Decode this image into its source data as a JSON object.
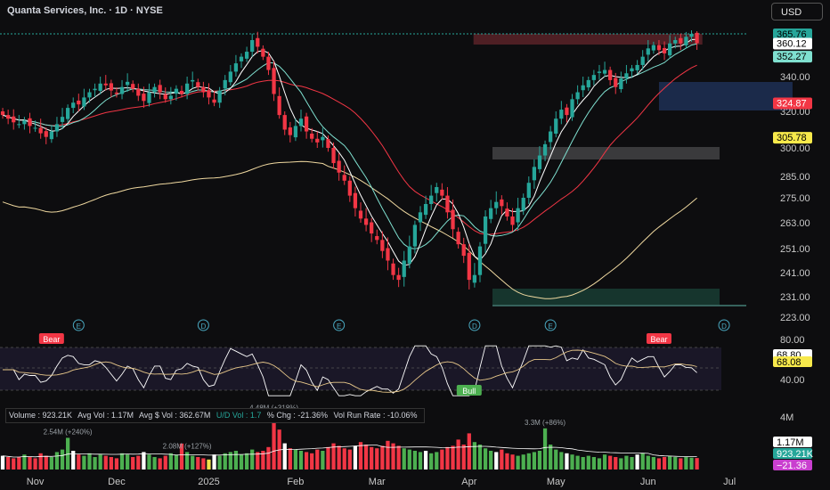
{
  "header": {
    "title": "Quanta Services, Inc. · 1D · NYSE",
    "currency": "USD"
  },
  "price_axis": {
    "ticks": [
      340,
      320,
      300,
      285,
      275,
      263,
      251,
      241,
      231,
      223
    ],
    "tick_labels": [
      "340.00",
      "320.00",
      "300.00",
      "285.00",
      "275.00",
      "263.00",
      "251.00",
      "241.00",
      "231.00",
      "223.00"
    ],
    "badges": [
      {
        "label": "365.76",
        "value": 365.76,
        "bg": "#26a69a",
        "fg": "#000000"
      },
      {
        "label": "360.12",
        "value": 360.12,
        "bg": "#ffffff",
        "fg": "#000000"
      },
      {
        "label": "352.27",
        "value": 352.27,
        "bg": "#7fe0d0",
        "fg": "#000000"
      },
      {
        "label": "324.87",
        "value": 324.87,
        "bg": "#f23645",
        "fg": "#ffffff"
      },
      {
        "label": "305.78",
        "value": 305.78,
        "bg": "#f7e94b",
        "fg": "#000000"
      }
    ]
  },
  "rsi_axis": {
    "labels": [
      "80.00",
      "40.00"
    ],
    "badges": [
      {
        "label": "68.80",
        "value": 68.8,
        "bg": "#ffffff",
        "fg": "#000000"
      },
      {
        "label": "68.08",
        "value": 68.08,
        "bg": "#f7e94b",
        "fg": "#000000"
      }
    ]
  },
  "vol_axis": {
    "labels": [
      "4M"
    ],
    "badges": [
      {
        "label": "1.17M",
        "value": 1.17,
        "bg": "#ffffff",
        "fg": "#000000"
      },
      {
        "label": "923.21K",
        "value": 0.923,
        "bg": "#26a69a",
        "fg": "#ffffff"
      },
      {
        "label": "−21.36",
        "value": -21.36,
        "bg": "#c93fcf",
        "fg": "#ffffff"
      }
    ]
  },
  "events": [
    {
      "letter": "E",
      "date_index": 14
    },
    {
      "letter": "D",
      "date_index": 37
    },
    {
      "letter": "E",
      "date_index": 62
    },
    {
      "letter": "D",
      "date_index": 87
    },
    {
      "letter": "E",
      "date_index": 101
    },
    {
      "letter": "D",
      "date_index": 133
    }
  ],
  "rsi_tags": [
    {
      "text": "Bear",
      "bg": "#f23645",
      "date_index": 9
    },
    {
      "text": "Bull",
      "bg": "#4caf50",
      "date_index": 86
    },
    {
      "text": "Bear",
      "bg": "#f23645",
      "date_index": 121
    }
  ],
  "volume_info": {
    "volume": "Volume : 923.21K",
    "avg_vol": "Avg Vol : 1.17M",
    "avg_dollar": "Avg $ Vol : 362.67M",
    "ud_vol": "U/D Vol : 1.7",
    "pct_chg": "% Chg : -21.36%",
    "run_rate": "Vol Run Rate : -10.06%"
  },
  "volume_annotations": [
    {
      "text": "2.54M (+240%)",
      "date_index": 12
    },
    {
      "text": "2.08M (+127%)",
      "date_index": 34
    },
    {
      "text": "4.48M (+318%)",
      "date_index": 50
    },
    {
      "text": "3.3M (+86%)",
      "date_index": 100
    }
  ],
  "x_axis": [
    {
      "label": "Nov",
      "date_index": 6
    },
    {
      "label": "Dec",
      "date_index": 21
    },
    {
      "label": "2025",
      "date_index": 38
    },
    {
      "label": "Feb",
      "date_index": 54
    },
    {
      "label": "Mar",
      "date_index": 69
    },
    {
      "label": "Apr",
      "date_index": 86
    },
    {
      "label": "May",
      "date_index": 102
    },
    {
      "label": "Jun",
      "date_index": 119
    },
    {
      "label": "Jul",
      "date_index": 134
    }
  ],
  "chart_data": {
    "type": "candlestick",
    "title": "Quanta Services, Inc. · 1D · NYSE",
    "ylim": [
      220,
      370
    ],
    "closes": [
      318,
      316,
      314,
      313,
      315,
      312,
      311,
      308,
      306,
      309,
      313,
      317,
      322,
      325,
      324,
      328,
      331,
      333,
      336,
      335,
      332,
      330,
      334,
      337,
      333,
      329,
      326,
      331,
      334,
      331,
      327,
      329,
      333,
      330,
      336,
      338,
      334,
      331,
      328,
      325,
      332,
      338,
      343,
      348,
      352,
      355,
      362,
      358,
      352,
      344,
      330,
      318,
      310,
      307,
      312,
      316,
      309,
      305,
      303,
      306,
      300,
      292,
      287,
      283,
      276,
      270,
      265,
      262,
      258,
      255,
      250,
      246,
      240,
      238,
      246,
      252,
      262,
      268,
      272,
      276,
      280,
      276,
      268,
      260,
      253,
      248,
      238,
      240,
      252,
      266,
      270,
      273,
      271,
      266,
      262,
      270,
      275,
      282,
      290,
      296,
      302,
      309,
      316,
      321,
      318,
      327,
      331,
      335,
      338,
      341,
      343,
      344,
      338,
      334,
      339,
      342,
      345,
      347,
      352,
      357,
      359,
      356,
      354,
      360,
      362,
      360,
      364,
      365.76,
      360.12
    ],
    "volume_m": [
      1.1,
      1.0,
      0.9,
      1.0,
      1.2,
      1.0,
      0.9,
      1.3,
      1.1,
      1.0,
      1.4,
      1.6,
      2.54,
      1.5,
      1.2,
      1.1,
      1.3,
      1.0,
      1.2,
      1.1,
      1.0,
      0.9,
      1.3,
      1.2,
      1.0,
      1.1,
      1.4,
      1.2,
      1.0,
      0.9,
      1.1,
      1.3,
      1.2,
      2.08,
      1.4,
      1.1,
      1.0,
      0.9,
      0.8,
      1.2,
      1.1,
      1.3,
      1.4,
      1.5,
      1.2,
      1.3,
      1.6,
      1.4,
      1.5,
      1.8,
      4.48,
      3.2,
      2.1,
      1.7,
      1.6,
      1.5,
      1.4,
      1.3,
      1.6,
      1.5,
      1.8,
      2.1,
      1.9,
      1.7,
      1.6,
      1.9,
      2.2,
      2.0,
      1.8,
      1.7,
      1.9,
      2.3,
      2.1,
      1.9,
      1.7,
      1.6,
      1.5,
      1.4,
      1.5,
      1.3,
      1.4,
      1.6,
      1.8,
      1.9,
      2.4,
      2.0,
      2.9,
      2.2,
      2.0,
      1.7,
      1.5,
      1.4,
      1.6,
      1.3,
      1.2,
      1.1,
      1.2,
      1.3,
      1.4,
      1.5,
      3.3,
      2.0,
      1.6,
      1.4,
      1.3,
      1.2,
      1.1,
      1.0,
      1.1,
      1.0,
      0.9,
      1.2,
      1.1,
      1.0,
      0.9,
      1.1,
      1.0,
      1.2,
      1.3,
      1.1,
      1.0,
      0.9,
      1.0,
      1.1,
      1.0,
      0.9,
      1.0,
      0.95,
      0.92
    ],
    "rsi_ylim": [
      25,
      85
    ]
  },
  "colors": {
    "up": "#26a69a",
    "down": "#f23645",
    "ma_fast": "#ffffff",
    "ma_mid": "#7fe0d0",
    "ma_slow": "#f23645",
    "ma_long": "#f0d9a0"
  }
}
